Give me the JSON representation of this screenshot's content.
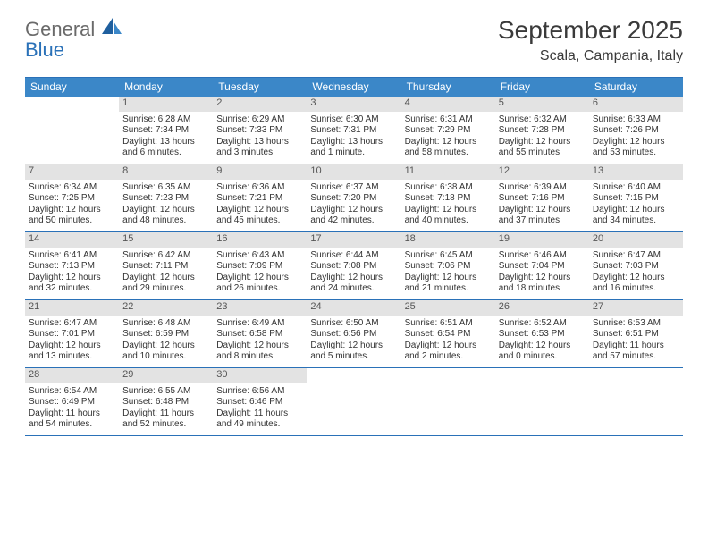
{
  "logo": {
    "line1": "General",
    "line2": "Blue"
  },
  "header": {
    "title": "September 2025",
    "location": "Scala, Campania, Italy"
  },
  "colors": {
    "header_bar": "#3b87c8",
    "header_border": "#2a71b8",
    "daynum_bg": "#e3e3e3",
    "logo_gray": "#6a6a6a",
    "logo_blue": "#2a71b8"
  },
  "weekdays": [
    "Sunday",
    "Monday",
    "Tuesday",
    "Wednesday",
    "Thursday",
    "Friday",
    "Saturday"
  ],
  "weeks": [
    [
      null,
      {
        "n": "1",
        "sr": "Sunrise: 6:28 AM",
        "ss": "Sunset: 7:34 PM",
        "d1": "Daylight: 13 hours",
        "d2": "and 6 minutes."
      },
      {
        "n": "2",
        "sr": "Sunrise: 6:29 AM",
        "ss": "Sunset: 7:33 PM",
        "d1": "Daylight: 13 hours",
        "d2": "and 3 minutes."
      },
      {
        "n": "3",
        "sr": "Sunrise: 6:30 AM",
        "ss": "Sunset: 7:31 PM",
        "d1": "Daylight: 13 hours",
        "d2": "and 1 minute."
      },
      {
        "n": "4",
        "sr": "Sunrise: 6:31 AM",
        "ss": "Sunset: 7:29 PM",
        "d1": "Daylight: 12 hours",
        "d2": "and 58 minutes."
      },
      {
        "n": "5",
        "sr": "Sunrise: 6:32 AM",
        "ss": "Sunset: 7:28 PM",
        "d1": "Daylight: 12 hours",
        "d2": "and 55 minutes."
      },
      {
        "n": "6",
        "sr": "Sunrise: 6:33 AM",
        "ss": "Sunset: 7:26 PM",
        "d1": "Daylight: 12 hours",
        "d2": "and 53 minutes."
      }
    ],
    [
      {
        "n": "7",
        "sr": "Sunrise: 6:34 AM",
        "ss": "Sunset: 7:25 PM",
        "d1": "Daylight: 12 hours",
        "d2": "and 50 minutes."
      },
      {
        "n": "8",
        "sr": "Sunrise: 6:35 AM",
        "ss": "Sunset: 7:23 PM",
        "d1": "Daylight: 12 hours",
        "d2": "and 48 minutes."
      },
      {
        "n": "9",
        "sr": "Sunrise: 6:36 AM",
        "ss": "Sunset: 7:21 PM",
        "d1": "Daylight: 12 hours",
        "d2": "and 45 minutes."
      },
      {
        "n": "10",
        "sr": "Sunrise: 6:37 AM",
        "ss": "Sunset: 7:20 PM",
        "d1": "Daylight: 12 hours",
        "d2": "and 42 minutes."
      },
      {
        "n": "11",
        "sr": "Sunrise: 6:38 AM",
        "ss": "Sunset: 7:18 PM",
        "d1": "Daylight: 12 hours",
        "d2": "and 40 minutes."
      },
      {
        "n": "12",
        "sr": "Sunrise: 6:39 AM",
        "ss": "Sunset: 7:16 PM",
        "d1": "Daylight: 12 hours",
        "d2": "and 37 minutes."
      },
      {
        "n": "13",
        "sr": "Sunrise: 6:40 AM",
        "ss": "Sunset: 7:15 PM",
        "d1": "Daylight: 12 hours",
        "d2": "and 34 minutes."
      }
    ],
    [
      {
        "n": "14",
        "sr": "Sunrise: 6:41 AM",
        "ss": "Sunset: 7:13 PM",
        "d1": "Daylight: 12 hours",
        "d2": "and 32 minutes."
      },
      {
        "n": "15",
        "sr": "Sunrise: 6:42 AM",
        "ss": "Sunset: 7:11 PM",
        "d1": "Daylight: 12 hours",
        "d2": "and 29 minutes."
      },
      {
        "n": "16",
        "sr": "Sunrise: 6:43 AM",
        "ss": "Sunset: 7:09 PM",
        "d1": "Daylight: 12 hours",
        "d2": "and 26 minutes."
      },
      {
        "n": "17",
        "sr": "Sunrise: 6:44 AM",
        "ss": "Sunset: 7:08 PM",
        "d1": "Daylight: 12 hours",
        "d2": "and 24 minutes."
      },
      {
        "n": "18",
        "sr": "Sunrise: 6:45 AM",
        "ss": "Sunset: 7:06 PM",
        "d1": "Daylight: 12 hours",
        "d2": "and 21 minutes."
      },
      {
        "n": "19",
        "sr": "Sunrise: 6:46 AM",
        "ss": "Sunset: 7:04 PM",
        "d1": "Daylight: 12 hours",
        "d2": "and 18 minutes."
      },
      {
        "n": "20",
        "sr": "Sunrise: 6:47 AM",
        "ss": "Sunset: 7:03 PM",
        "d1": "Daylight: 12 hours",
        "d2": "and 16 minutes."
      }
    ],
    [
      {
        "n": "21",
        "sr": "Sunrise: 6:47 AM",
        "ss": "Sunset: 7:01 PM",
        "d1": "Daylight: 12 hours",
        "d2": "and 13 minutes."
      },
      {
        "n": "22",
        "sr": "Sunrise: 6:48 AM",
        "ss": "Sunset: 6:59 PM",
        "d1": "Daylight: 12 hours",
        "d2": "and 10 minutes."
      },
      {
        "n": "23",
        "sr": "Sunrise: 6:49 AM",
        "ss": "Sunset: 6:58 PM",
        "d1": "Daylight: 12 hours",
        "d2": "and 8 minutes."
      },
      {
        "n": "24",
        "sr": "Sunrise: 6:50 AM",
        "ss": "Sunset: 6:56 PM",
        "d1": "Daylight: 12 hours",
        "d2": "and 5 minutes."
      },
      {
        "n": "25",
        "sr": "Sunrise: 6:51 AM",
        "ss": "Sunset: 6:54 PM",
        "d1": "Daylight: 12 hours",
        "d2": "and 2 minutes."
      },
      {
        "n": "26",
        "sr": "Sunrise: 6:52 AM",
        "ss": "Sunset: 6:53 PM",
        "d1": "Daylight: 12 hours",
        "d2": "and 0 minutes."
      },
      {
        "n": "27",
        "sr": "Sunrise: 6:53 AM",
        "ss": "Sunset: 6:51 PM",
        "d1": "Daylight: 11 hours",
        "d2": "and 57 minutes."
      }
    ],
    [
      {
        "n": "28",
        "sr": "Sunrise: 6:54 AM",
        "ss": "Sunset: 6:49 PM",
        "d1": "Daylight: 11 hours",
        "d2": "and 54 minutes."
      },
      {
        "n": "29",
        "sr": "Sunrise: 6:55 AM",
        "ss": "Sunset: 6:48 PM",
        "d1": "Daylight: 11 hours",
        "d2": "and 52 minutes."
      },
      {
        "n": "30",
        "sr": "Sunrise: 6:56 AM",
        "ss": "Sunset: 6:46 PM",
        "d1": "Daylight: 11 hours",
        "d2": "and 49 minutes."
      },
      null,
      null,
      null,
      null
    ]
  ]
}
